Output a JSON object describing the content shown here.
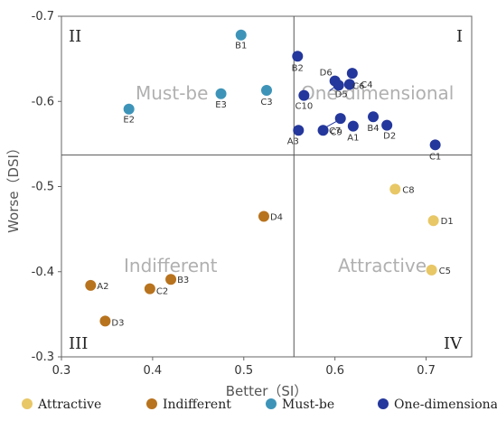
{
  "chart_data": {
    "type": "scatter",
    "title": "",
    "xlabel": "Better（SI）",
    "ylabel": "Worse（DSI）",
    "xlim": [
      0.3,
      0.75
    ],
    "ylim": [
      -0.3,
      -0.7
    ],
    "x_ticks": [
      "0.3",
      "0.4",
      "0.5",
      "0.6",
      "0.7"
    ],
    "y_ticks": [
      "-0.3",
      "-0.4",
      "-0.5",
      "-0.6",
      "-0.7"
    ],
    "grid": false,
    "dividers": {
      "x": 0.555,
      "y": -0.537
    },
    "quadrants": {
      "I": "I",
      "II": "II",
      "III": "III",
      "IV": "IV"
    },
    "region_labels": {
      "must_be": "Must-be",
      "one_dimensional": "One-dimensional",
      "indifferent": "Indifferent",
      "attractive": "Attractive"
    },
    "legend_position": "bottom",
    "colors": {
      "Attractive": "#e8c766",
      "Indifferent": "#b8731e",
      "Must-be": "#3d94b8",
      "One-dimensional": "#24379c"
    },
    "series": [
      {
        "name": "Attractive",
        "points": [
          {
            "label": "C8",
            "x": 0.666,
            "y": -0.497
          },
          {
            "label": "D1",
            "x": 0.708,
            "y": -0.46
          },
          {
            "label": "C5",
            "x": 0.706,
            "y": -0.402
          }
        ]
      },
      {
        "name": "Indifferent",
        "points": [
          {
            "label": "D4",
            "x": 0.522,
            "y": -0.465
          },
          {
            "label": "A2",
            "x": 0.332,
            "y": -0.384
          },
          {
            "label": "C2",
            "x": 0.397,
            "y": -0.38
          },
          {
            "label": "B3",
            "x": 0.42,
            "y": -0.391
          },
          {
            "label": "D3",
            "x": 0.348,
            "y": -0.342
          }
        ]
      },
      {
        "name": "Must-be",
        "points": [
          {
            "label": "B1",
            "x": 0.497,
            "y": -0.678
          },
          {
            "label": "E3",
            "x": 0.475,
            "y": -0.609
          },
          {
            "label": "C3",
            "x": 0.525,
            "y": -0.613
          },
          {
            "label": "E2",
            "x": 0.374,
            "y": -0.591
          }
        ]
      },
      {
        "name": "One-dimensional",
        "points": [
          {
            "label": "B2",
            "x": 0.559,
            "y": -0.653
          },
          {
            "label": "C4",
            "x": 0.619,
            "y": -0.633
          },
          {
            "label": "C6",
            "x": 0.616,
            "y": -0.62
          },
          {
            "label": "D6",
            "x": 0.6,
            "y": -0.624
          },
          {
            "label": "D5",
            "x": 0.604,
            "y": -0.619
          },
          {
            "label": "C10",
            "x": 0.566,
            "y": -0.607
          },
          {
            "label": "A3",
            "x": 0.56,
            "y": -0.566
          },
          {
            "label": "C9",
            "x": 0.587,
            "y": -0.566
          },
          {
            "label": "C7",
            "x": 0.606,
            "y": -0.58
          },
          {
            "label": "A1",
            "x": 0.62,
            "y": -0.571
          },
          {
            "label": "B4",
            "x": 0.642,
            "y": -0.582
          },
          {
            "label": "D2",
            "x": 0.657,
            "y": -0.572
          },
          {
            "label": "C1",
            "x": 0.71,
            "y": -0.549
          }
        ]
      }
    ]
  }
}
